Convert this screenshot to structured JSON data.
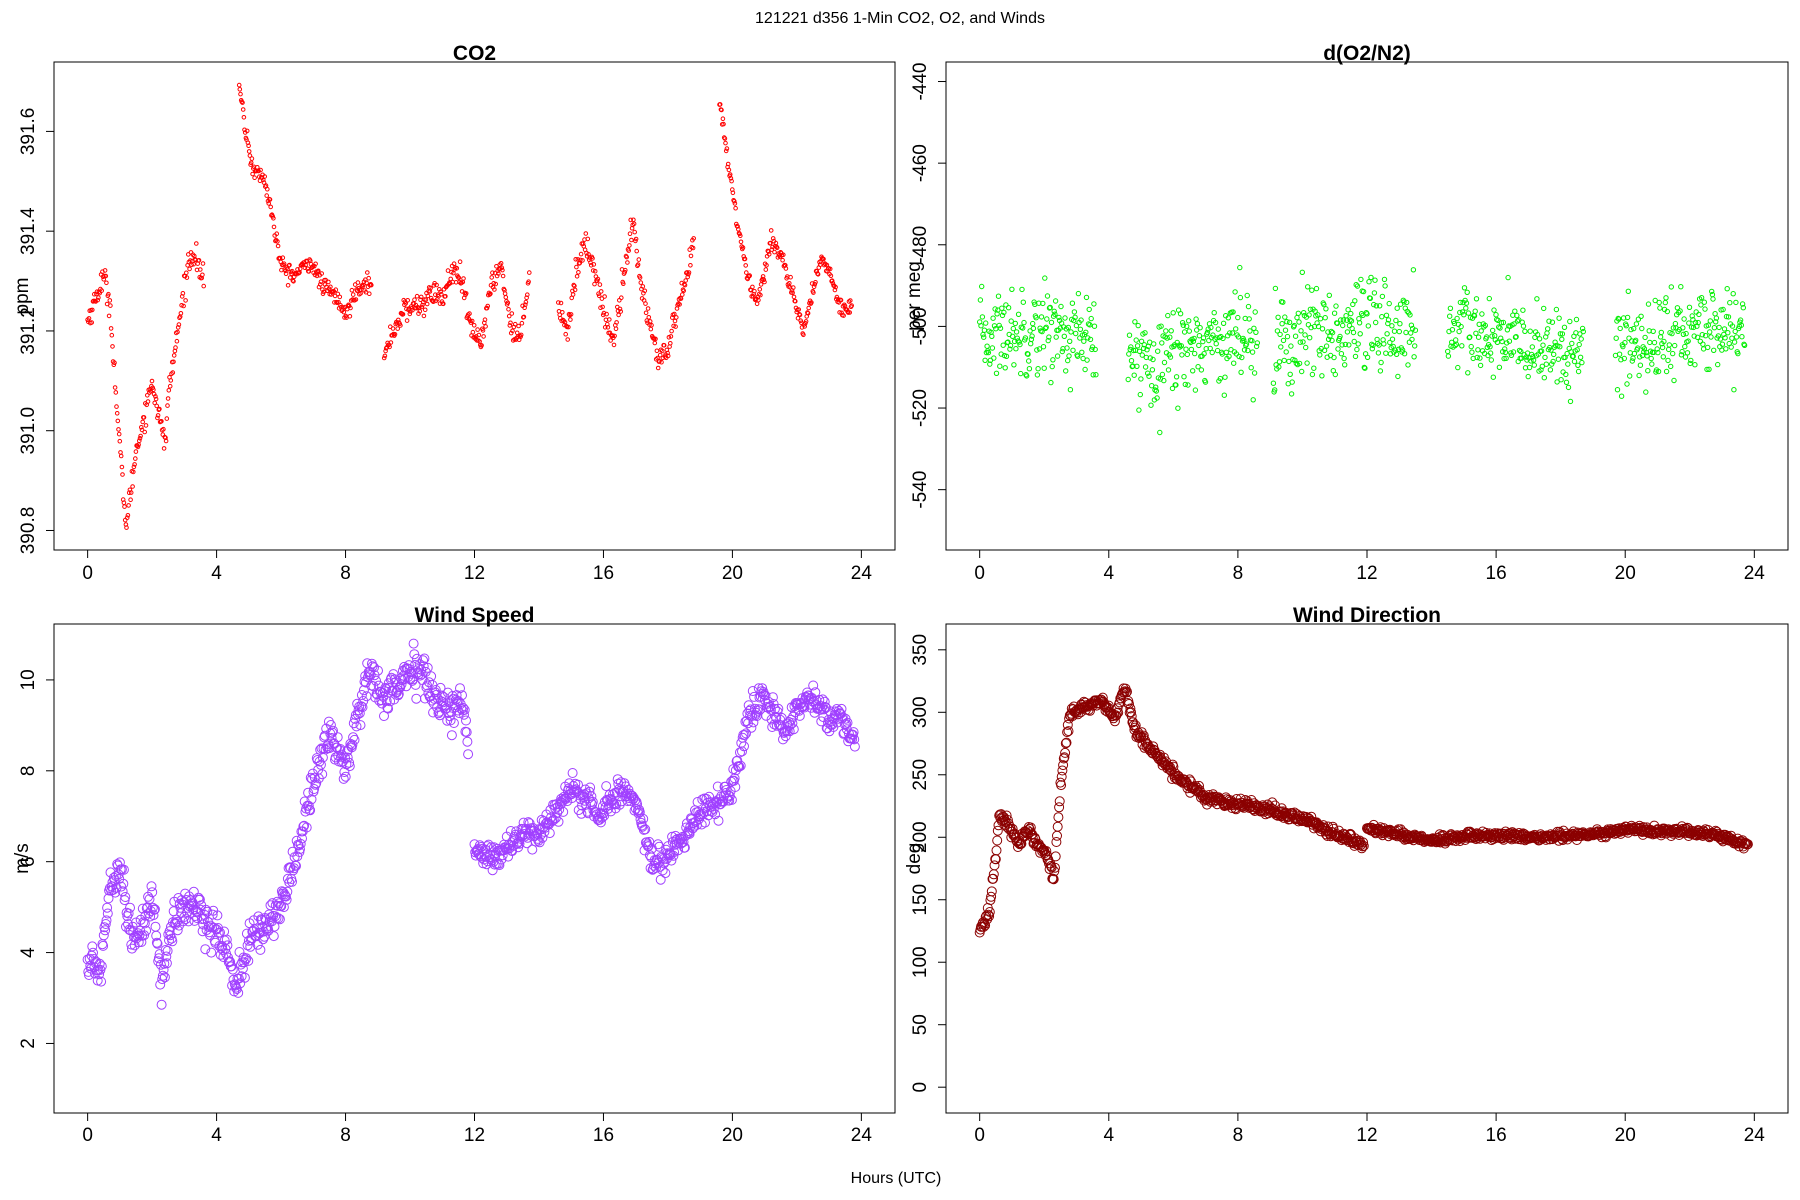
{
  "header": {
    "title": "121221   d356   1-Min CO2, O2, and Winds"
  },
  "footer": {
    "xlabel": "Hours (UTC)"
  },
  "chart_data": [
    {
      "id": "co2",
      "type": "scatter",
      "title": "CO2",
      "ylabel": "ppm",
      "xlabel": "",
      "color": "#ff0000",
      "xlim": [
        0,
        24
      ],
      "ylim": [
        390.8,
        391.7
      ],
      "xticks": [
        0,
        4,
        8,
        12,
        16,
        20,
        24
      ],
      "yticks": [
        390.8,
        391.0,
        391.2,
        391.4,
        391.6
      ],
      "ytick_labels": [
        "390.8",
        "391.0",
        "391.2",
        "391.4",
        "391.6"
      ],
      "segments": [
        {
          "x": [
            0,
            0.5,
            0.7,
            0.9,
            1.1,
            1.2,
            1.5,
            1.8,
            2.0,
            2.4,
            2.5,
            2.8,
            3.1,
            3.3,
            3.6
          ],
          "y": [
            391.22,
            391.31,
            391.25,
            391.05,
            390.88,
            390.81,
            390.96,
            391.04,
            391.1,
            390.97,
            391.07,
            391.2,
            391.33,
            391.36,
            391.3
          ],
          "jitter": 0.02
        },
        {
          "x": [
            4.7,
            4.9,
            5.1,
            5.5,
            5.7,
            6.0,
            6.4,
            6.9,
            7.3,
            7.7,
            8.0,
            8.3,
            8.6,
            8.8
          ],
          "y": [
            391.69,
            391.6,
            391.53,
            391.5,
            391.44,
            391.33,
            391.31,
            391.34,
            391.29,
            391.27,
            391.23,
            391.28,
            391.3,
            391.29
          ],
          "jitter": 0.015
        },
        {
          "x": [
            9.2,
            9.4,
            9.8,
            10.2,
            10.5,
            10.8,
            11.0,
            11.3,
            11.6,
            11.9,
            12.2,
            12.5,
            12.8,
            13.1,
            13.4,
            13.7
          ],
          "y": [
            391.14,
            391.19,
            391.24,
            391.25,
            391.26,
            391.28,
            391.26,
            391.32,
            391.3,
            391.2,
            391.18,
            391.28,
            391.34,
            391.22,
            391.18,
            391.32
          ],
          "jitter": 0.02
        },
        {
          "x": [
            14.6,
            14.9,
            15.1,
            15.4,
            15.7,
            16.0,
            16.3,
            16.6,
            16.9,
            17.2,
            17.5,
            17.7,
            18.0,
            18.2,
            18.5,
            18.8
          ],
          "y": [
            391.25,
            391.2,
            391.3,
            391.38,
            391.33,
            391.24,
            391.18,
            391.3,
            391.42,
            391.28,
            391.2,
            391.14,
            391.16,
            391.22,
            391.28,
            391.38
          ],
          "jitter": 0.02
        },
        {
          "x": [
            19.6,
            19.9,
            20.2,
            20.5,
            20.8,
            21.2,
            21.5,
            21.9,
            22.2,
            22.5,
            22.8,
            23.1,
            23.4,
            23.7
          ],
          "y": [
            391.66,
            391.52,
            391.4,
            391.3,
            391.26,
            391.38,
            391.36,
            391.26,
            391.2,
            391.28,
            391.35,
            391.3,
            391.24,
            391.26
          ],
          "jitter": 0.015
        }
      ]
    },
    {
      "id": "o2",
      "type": "scatter",
      "title": "d(O2/N2)",
      "ylabel": "per meg",
      "xlabel": "",
      "color": "#00ee00",
      "xlim": [
        0,
        24
      ],
      "ylim": [
        -550,
        -440
      ],
      "xticks": [
        0,
        4,
        8,
        12,
        16,
        20,
        24
      ],
      "yticks": [
        -540,
        -520,
        -500,
        -480,
        -460,
        -440
      ],
      "ytick_labels": [
        "-540",
        "-520",
        "-500",
        "-480",
        "-460",
        "-440"
      ],
      "segments": [
        {
          "x": [
            0,
            1,
            2,
            3,
            3.6
          ],
          "y": [
            -503,
            -501,
            -500,
            -503,
            -505
          ],
          "jitter": 9
        },
        {
          "x": [
            4.6,
            5.5,
            6.5,
            7.5,
            8.6
          ],
          "y": [
            -508,
            -507,
            -505,
            -503,
            -501
          ],
          "jitter": 9
        },
        {
          "x": [
            9.1,
            10,
            11,
            12,
            13,
            13.5
          ],
          "y": [
            -505,
            -503,
            -502,
            -502,
            -500,
            -502
          ],
          "jitter": 11
        },
        {
          "x": [
            14.5,
            15.5,
            16.5,
            17.5,
            18.7
          ],
          "y": [
            -500,
            -502,
            -504,
            -505,
            -507
          ],
          "jitter": 8
        },
        {
          "x": [
            19.7,
            20.5,
            21.5,
            22.5,
            23.7
          ],
          "y": [
            -506,
            -504,
            -502,
            -501,
            -500
          ],
          "jitter": 9
        }
      ]
    },
    {
      "id": "wind-speed",
      "type": "scatter",
      "title": "Wind Speed",
      "ylabel": "m/s",
      "xlabel": "",
      "color": "#a040ff",
      "xlim": [
        0,
        24
      ],
      "ylim": [
        0.9,
        10.8
      ],
      "xticks": [
        0,
        4,
        8,
        12,
        16,
        20,
        24
      ],
      "yticks": [
        2,
        4,
        6,
        8,
        10
      ],
      "ytick_labels": [
        "2",
        "4",
        "6",
        "8",
        "10"
      ],
      "segments": [
        {
          "x": [
            0,
            0.4,
            0.7,
            1.0,
            1.3,
            1.6,
            2.0,
            2.3,
            2.6,
            3.0,
            3.5,
            4.0,
            4.3,
            4.6,
            5.0,
            5.5,
            6.0,
            6.5,
            7.0,
            7.5,
            8.0,
            8.5,
            8.8,
            9.2,
            9.6,
            10.0,
            10.4,
            10.8,
            11.2,
            11.6,
            11.8
          ],
          "y": [
            3.8,
            3.6,
            5.6,
            5.9,
            4.6,
            4.2,
            5.3,
            3.3,
            4.6,
            5.0,
            4.9,
            4.4,
            4.1,
            3.2,
            4.2,
            4.6,
            5.0,
            6.2,
            7.8,
            8.8,
            8.1,
            9.5,
            10.3,
            9.6,
            9.9,
            10.1,
            10.2,
            9.6,
            9.3,
            9.5,
            8.7
          ],
          "jitter": 0.35
        },
        {
          "x": [
            12.0,
            12.5,
            13.0,
            13.5,
            14.0,
            14.5,
            15.0,
            15.5,
            16.0,
            16.5,
            17.0,
            17.3,
            17.6,
            18.0,
            18.5,
            19.0,
            19.5,
            20.0,
            20.5,
            20.9,
            21.2,
            21.6,
            22.0,
            22.5,
            23.0,
            23.4,
            23.8
          ],
          "y": [
            6.3,
            6.1,
            6.3,
            6.6,
            6.6,
            7.1,
            7.6,
            7.3,
            7.1,
            7.6,
            7.3,
            6.6,
            5.9,
            6.1,
            6.6,
            7.1,
            7.3,
            7.6,
            9.1,
            9.6,
            9.4,
            8.8,
            9.4,
            9.6,
            9.1,
            9.2,
            8.7
          ],
          "jitter": 0.25
        }
      ]
    },
    {
      "id": "wind-direction",
      "type": "scatter",
      "title": "Wind Direction",
      "ylabel": "deg",
      "xlabel": "",
      "color": "#8b0000",
      "xlim": [
        0,
        24
      ],
      "ylim": [
        -5,
        355
      ],
      "xticks": [
        0,
        4,
        8,
        12,
        16,
        20,
        24
      ],
      "yticks": [
        0,
        50,
        100,
        150,
        200,
        250,
        300,
        350
      ],
      "ytick_labels": [
        "0",
        "50",
        "100",
        "150",
        "200",
        "250",
        "300",
        "350"
      ],
      "segments": [
        {
          "x": [
            0,
            0.3,
            0.5,
            0.6,
            0.9,
            1.2,
            1.5,
            1.8,
            2.1,
            2.3,
            2.5,
            2.8,
            3.3,
            3.8,
            4.2,
            4.5,
            4.8,
            5.2,
            5.7,
            6.3,
            7.0,
            8.0,
            9.0,
            10.0,
            11.0,
            11.9
          ],
          "y": [
            125,
            140,
            185,
            218,
            210,
            195,
            205,
            195,
            185,
            165,
            240,
            300,
            305,
            308,
            295,
            320,
            285,
            275,
            260,
            245,
            232,
            227,
            222,
            215,
            203,
            193
          ],
          "jitter": 4
        },
        {
          "x": [
            12.0,
            12.5,
            13.0,
            13.5,
            14.0,
            15.0,
            16.0,
            17.0,
            18.0,
            19.0,
            20.0,
            21.0,
            22.0,
            23.0,
            23.8
          ],
          "y": [
            208,
            205,
            203,
            200,
            197,
            200,
            202,
            199,
            201,
            203,
            206,
            205,
            204,
            201,
            194
          ],
          "jitter": 3
        }
      ]
    }
  ]
}
